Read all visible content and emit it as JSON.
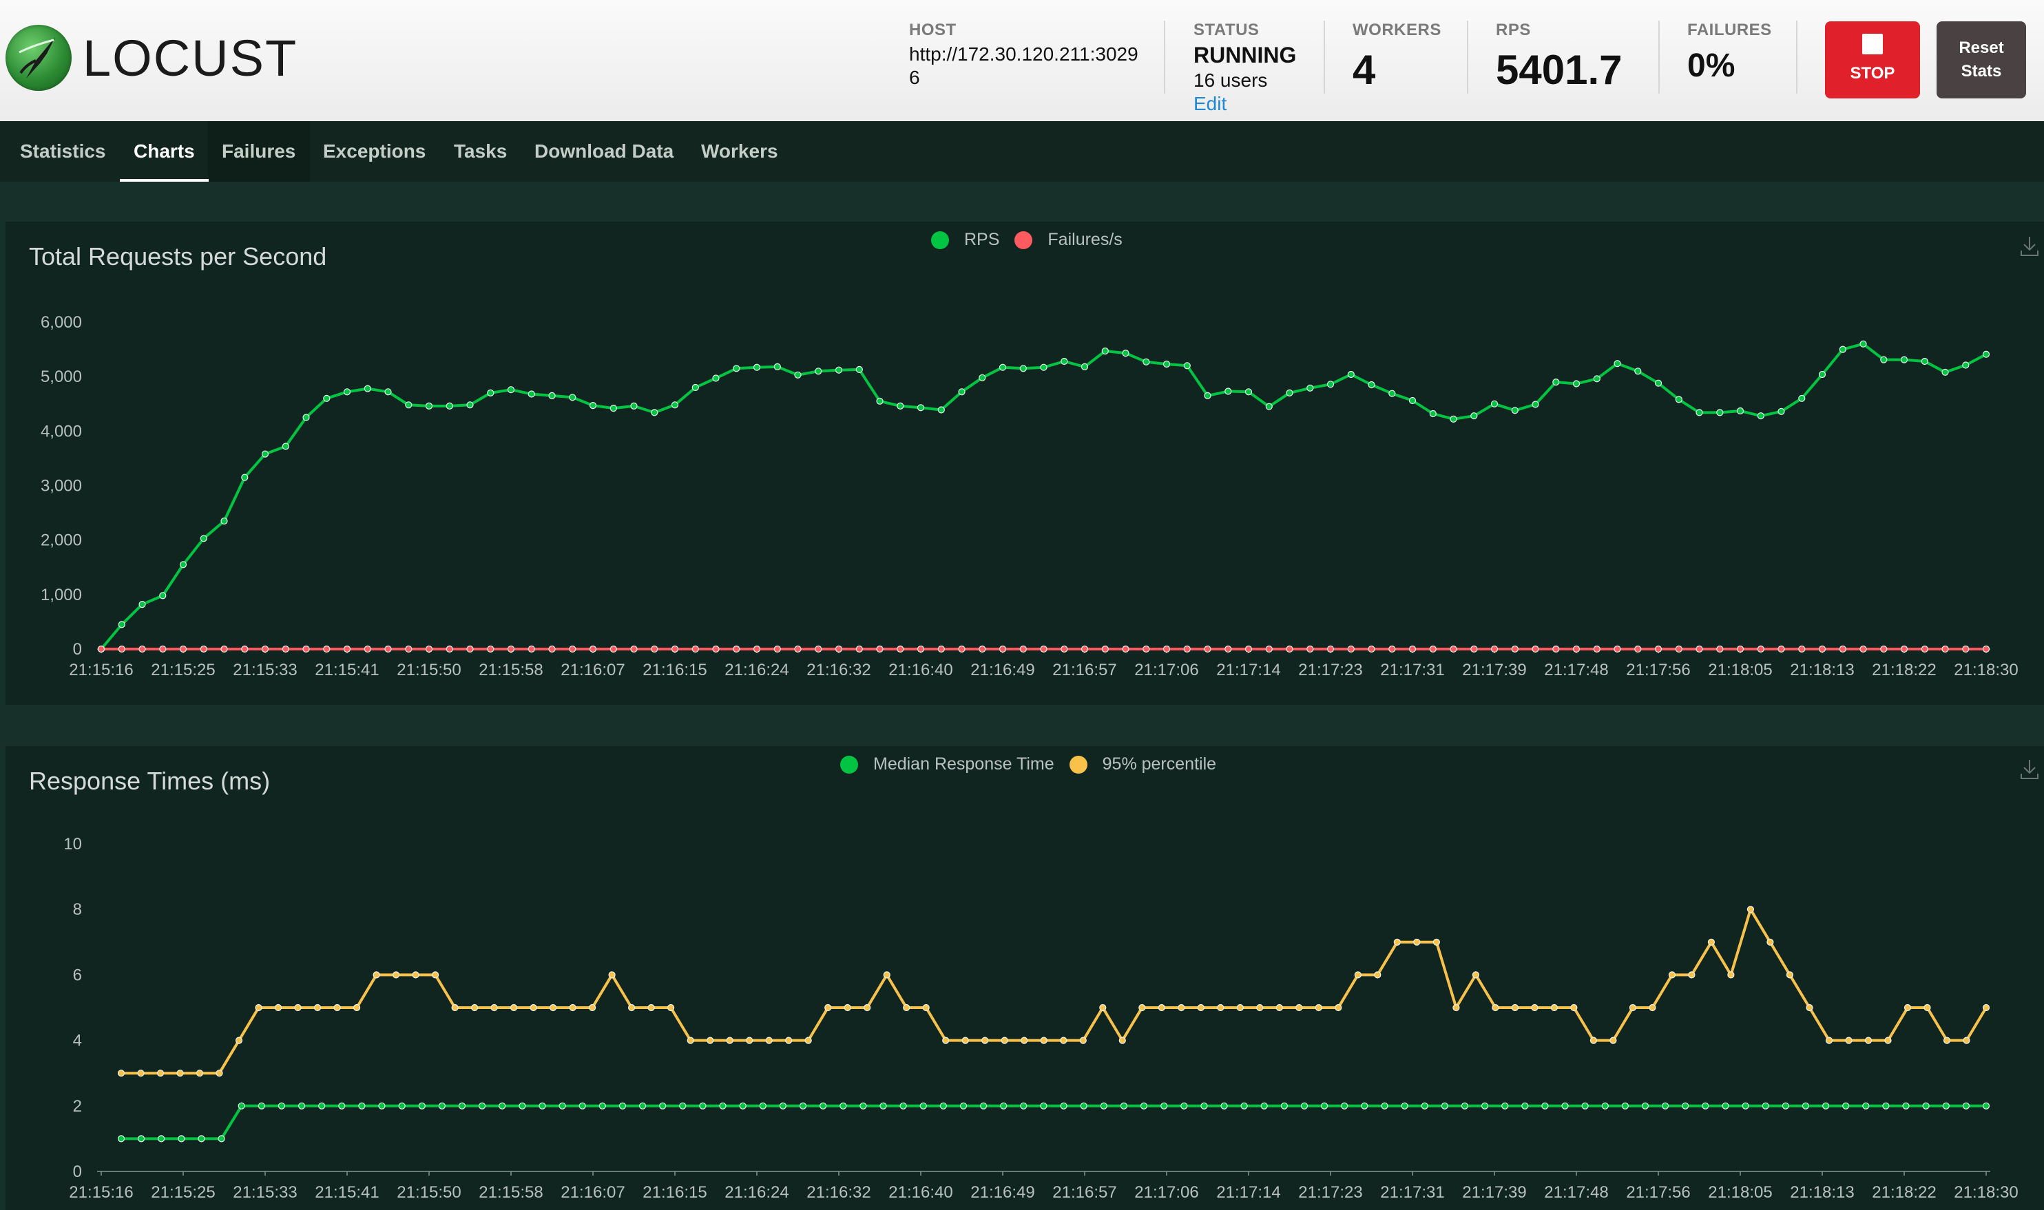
{
  "header": {
    "logo_text": "LOCUST",
    "host_label": "HOST",
    "host_value": "http://172.30.120.211:30296",
    "status_label": "STATUS",
    "status_value": "RUNNING",
    "status_users": "16 users",
    "status_edit": "Edit",
    "workers_label": "WORKERS",
    "workers_value": "4",
    "rps_label": "RPS",
    "rps_value": "5401.7",
    "failures_label": "FAILURES",
    "failures_value": "0%",
    "stop_label": "STOP",
    "reset_label": "Reset Stats"
  },
  "tabs": [
    {
      "label": "Statistics"
    },
    {
      "label": "Charts",
      "active": true
    },
    {
      "label": "Failures"
    },
    {
      "label": "Exceptions"
    },
    {
      "label": "Tasks"
    },
    {
      "label": "Download Data"
    },
    {
      "label": "Workers"
    }
  ],
  "colors": {
    "green": "#00c442",
    "red": "#ff5a5f",
    "yellow": "#f8c14a",
    "stop": "#e0202a",
    "reset": "#4a4242"
  },
  "chart_data": [
    {
      "type": "line",
      "title": "Total Requests per Second",
      "legend": [
        "RPS",
        "Failures/s"
      ],
      "x_tick_labels": [
        "21:15:16",
        "21:15:25",
        "21:15:33",
        "21:15:41",
        "21:15:50",
        "21:15:58",
        "21:16:07",
        "21:16:15",
        "21:16:24",
        "21:16:32",
        "21:16:40",
        "21:16:49",
        "21:16:57",
        "21:17:06",
        "21:17:14",
        "21:17:23",
        "21:17:31",
        "21:17:39",
        "21:17:48",
        "21:17:56",
        "21:18:05",
        "21:18:13",
        "21:18:22",
        "21:18:30"
      ],
      "y_ticks": [
        "0",
        "1,000",
        "2,000",
        "3,000",
        "4,000",
        "5,000",
        "6,000"
      ],
      "ylim": [
        0,
        6000
      ],
      "series": [
        {
          "name": "RPS",
          "color": "#00c442",
          "values": [
            0,
            450,
            820,
            980,
            1550,
            2030,
            2350,
            3150,
            3580,
            3720,
            4250,
            4600,
            4720,
            4780,
            4720,
            4480,
            4460,
            4460,
            4480,
            4700,
            4760,
            4680,
            4650,
            4620,
            4470,
            4420,
            4460,
            4340,
            4480,
            4800,
            4970,
            5150,
            5170,
            5180,
            5030,
            5100,
            5120,
            5130,
            4550,
            4460,
            4430,
            4390,
            4720,
            4980,
            5170,
            5150,
            5170,
            5280,
            5180,
            5470,
            5430,
            5270,
            5230,
            5200,
            4650,
            4730,
            4720,
            4450,
            4700,
            4790,
            4860,
            5040,
            4850,
            4690,
            4560,
            4320,
            4220,
            4280,
            4500,
            4380,
            4490,
            4900,
            4870,
            4960,
            5240,
            5100,
            4880,
            4580,
            4340,
            4340,
            4370,
            4280,
            4360,
            4600,
            5040,
            5500,
            5600,
            5310,
            5310,
            5280,
            5080,
            5210,
            5410
          ]
        },
        {
          "name": "Failures/s",
          "color": "#ff5a5f",
          "values": [
            0,
            0,
            0,
            0,
            0,
            0,
            0,
            0,
            0,
            0,
            0,
            0,
            0,
            0,
            0,
            0,
            0,
            0,
            0,
            0,
            0,
            0,
            0,
            0,
            0,
            0,
            0,
            0,
            0,
            0,
            0,
            0,
            0,
            0,
            0,
            0,
            0,
            0,
            0,
            0,
            0,
            0,
            0,
            0,
            0,
            0,
            0,
            0,
            0,
            0,
            0,
            0,
            0,
            0,
            0,
            0,
            0,
            0,
            0,
            0,
            0,
            0,
            0,
            0,
            0,
            0,
            0,
            0,
            0,
            0,
            0,
            0,
            0,
            0,
            0,
            0,
            0,
            0,
            0,
            0,
            0,
            0,
            0,
            0,
            0,
            0,
            0,
            0,
            0,
            0,
            0,
            0,
            0
          ]
        }
      ]
    },
    {
      "type": "line",
      "title": "Response Times (ms)",
      "legend": [
        "Median Response Time",
        "95% percentile"
      ],
      "x_tick_labels": [
        "21:15:16",
        "21:15:25",
        "21:15:33",
        "21:15:41",
        "21:15:50",
        "21:15:58",
        "21:16:07",
        "21:16:15",
        "21:16:24",
        "21:16:32",
        "21:16:40",
        "21:16:49",
        "21:16:57",
        "21:17:06",
        "21:17:14",
        "21:17:23",
        "21:17:31",
        "21:17:39",
        "21:17:48",
        "21:17:56",
        "21:18:05",
        "21:18:13",
        "21:18:22",
        "21:18:30"
      ],
      "y_ticks": [
        "0",
        "2",
        "4",
        "6",
        "8",
        "10"
      ],
      "ylim": [
        0,
        10
      ],
      "series": [
        {
          "name": "Median Response Time",
          "color": "#00c442",
          "values": [
            1,
            1,
            1,
            1,
            1,
            1,
            2,
            2,
            2,
            2,
            2,
            2,
            2,
            2,
            2,
            2,
            2,
            2,
            2,
            2,
            2,
            2,
            2,
            2,
            2,
            2,
            2,
            2,
            2,
            2,
            2,
            2,
            2,
            2,
            2,
            2,
            2,
            2,
            2,
            2,
            2,
            2,
            2,
            2,
            2,
            2,
            2,
            2,
            2,
            2,
            2,
            2,
            2,
            2,
            2,
            2,
            2,
            2,
            2,
            2,
            2,
            2,
            2,
            2,
            2,
            2,
            2,
            2,
            2,
            2,
            2,
            2,
            2,
            2,
            2,
            2,
            2,
            2,
            2,
            2,
            2,
            2,
            2,
            2,
            2,
            2,
            2,
            2,
            2,
            2,
            2,
            2,
            2,
            2
          ]
        },
        {
          "name": "95% percentile",
          "color": "#f8c14a",
          "values": [
            3,
            3,
            3,
            3,
            3,
            3,
            4,
            5,
            5,
            5,
            5,
            5,
            5,
            6,
            6,
            6,
            6,
            5,
            5,
            5,
            5,
            5,
            5,
            5,
            5,
            6,
            5,
            5,
            5,
            4,
            4,
            4,
            4,
            4,
            4,
            4,
            5,
            5,
            5,
            6,
            5,
            5,
            4,
            4,
            4,
            4,
            4,
            4,
            4,
            4,
            5,
            4,
            5,
            5,
            5,
            5,
            5,
            5,
            5,
            5,
            5,
            5,
            5,
            6,
            6,
            7,
            7,
            7,
            5,
            6,
            5,
            5,
            5,
            5,
            5,
            4,
            4,
            5,
            5,
            6,
            6,
            7,
            6,
            8,
            7,
            6,
            5,
            4,
            4,
            4,
            4,
            5,
            5,
            4,
            4,
            5
          ]
        }
      ]
    }
  ]
}
